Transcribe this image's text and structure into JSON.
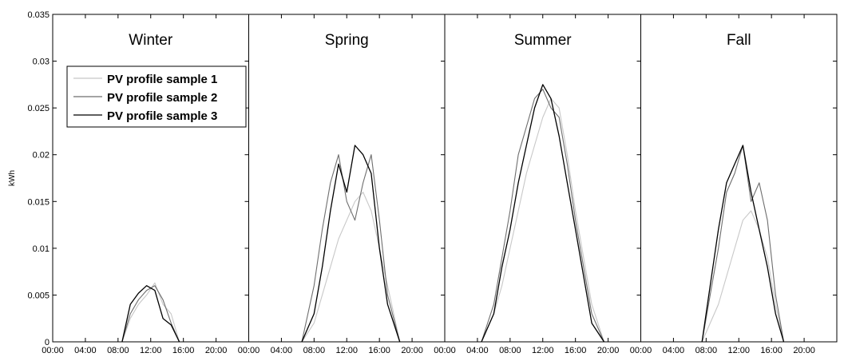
{
  "chart_data": {
    "type": "line",
    "ylabel": "kWh",
    "ylim": [
      0,
      0.035
    ],
    "yticks": [
      0,
      0.005,
      0.01,
      0.015,
      0.02,
      0.025,
      0.03,
      0.035
    ],
    "ytick_labels": [
      "0",
      "0.005",
      "0.01",
      "0.015",
      "0.02",
      "0.025",
      "0.03",
      "0.035"
    ],
    "xlim_hours": [
      0,
      24
    ],
    "xticks_hours": [
      0,
      4,
      8,
      12,
      16,
      20
    ],
    "xtick_labels": [
      "00:00",
      "04:00",
      "08:00",
      "12:00",
      "16:00",
      "20:00"
    ],
    "grid": false,
    "legend_position": "top-left (Winter panel)",
    "legend": [
      "PV profile sample 1",
      "PV profile sample 2",
      "PV profile sample 3"
    ],
    "series_colors": [
      "#c8c8c8",
      "#6e6e6e",
      "#000000"
    ],
    "panels": [
      {
        "title": "Winter",
        "series": [
          {
            "name": "PV profile sample 1",
            "hours": [
              8.5,
              9.5,
              10.5,
              11.5,
              12.5,
              13.5,
              14.5,
              15.5
            ],
            "values": [
              0.0,
              0.0025,
              0.004,
              0.005,
              0.0063,
              0.004,
              0.003,
              0.0
            ]
          },
          {
            "name": "PV profile sample 2",
            "hours": [
              8.5,
              9.5,
              10.5,
              11.5,
              12.5,
              13.5,
              14.5,
              15.5
            ],
            "values": [
              0.0,
              0.003,
              0.0045,
              0.0055,
              0.006,
              0.0045,
              0.002,
              0.0
            ]
          },
          {
            "name": "PV profile sample 3",
            "hours": [
              8.5,
              9.5,
              10.5,
              11.5,
              12.5,
              13.5,
              14.5,
              15.5
            ],
            "values": [
              0.0,
              0.004,
              0.0052,
              0.006,
              0.0055,
              0.0025,
              0.0018,
              0.0
            ]
          }
        ]
      },
      {
        "title": "Spring",
        "series": [
          {
            "name": "PV profile sample 1",
            "hours": [
              6.5,
              8,
              9,
              10,
              11,
              12,
              13,
              14,
              15,
              16,
              17,
              18.5
            ],
            "values": [
              0.0,
              0.002,
              0.005,
              0.008,
              0.011,
              0.013,
              0.015,
              0.016,
              0.014,
              0.01,
              0.006,
              0.0
            ]
          },
          {
            "name": "PV profile sample 2",
            "hours": [
              6.5,
              8,
              9,
              10,
              11,
              12,
              13,
              14,
              15,
              16,
              17,
              18.5
            ],
            "values": [
              0.0,
              0.006,
              0.012,
              0.017,
              0.02,
              0.015,
              0.013,
              0.017,
              0.02,
              0.013,
              0.005,
              0.0
            ]
          },
          {
            "name": "PV profile sample 3",
            "hours": [
              6.5,
              8,
              9,
              10,
              11,
              12,
              13,
              14,
              15,
              16,
              17,
              18.5
            ],
            "values": [
              0.0,
              0.003,
              0.008,
              0.014,
              0.019,
              0.016,
              0.021,
              0.02,
              0.018,
              0.01,
              0.004,
              0.0
            ]
          }
        ]
      },
      {
        "title": "Summer",
        "series": [
          {
            "name": "PV profile sample 1",
            "hours": [
              4.5,
              6,
              7,
              8,
              9,
              10,
              11,
              12,
              13,
              14,
              15,
              16,
              17,
              18,
              19.5
            ],
            "values": [
              0.0,
              0.003,
              0.006,
              0.01,
              0.014,
              0.018,
              0.021,
              0.024,
              0.026,
              0.025,
              0.02,
              0.014,
              0.009,
              0.004,
              0.0
            ]
          },
          {
            "name": "PV profile sample 2",
            "hours": [
              4.5,
              6,
              7,
              8,
              9,
              10,
              11,
              12,
              13,
              14,
              15,
              16,
              17,
              18,
              19.5
            ],
            "values": [
              0.0,
              0.004,
              0.009,
              0.014,
              0.02,
              0.023,
              0.026,
              0.027,
              0.025,
              0.024,
              0.019,
              0.013,
              0.008,
              0.003,
              0.0
            ]
          },
          {
            "name": "PV profile sample 3",
            "hours": [
              4.5,
              6,
              7,
              8,
              9,
              10,
              11,
              12,
              13,
              14,
              15,
              16,
              17,
              18,
              19.5
            ],
            "values": [
              0.0,
              0.003,
              0.008,
              0.012,
              0.017,
              0.021,
              0.025,
              0.0275,
              0.026,
              0.022,
              0.017,
              0.012,
              0.007,
              0.002,
              0.0
            ]
          }
        ]
      },
      {
        "title": "Fall",
        "series": [
          {
            "name": "PV profile sample 1",
            "hours": [
              7.5,
              8.5,
              9.5,
              10.5,
              11.5,
              12.5,
              13.5,
              14.5,
              15.5,
              16.5,
              17.5
            ],
            "values": [
              0.0,
              0.002,
              0.004,
              0.007,
              0.01,
              0.013,
              0.014,
              0.012,
              0.009,
              0.004,
              0.0
            ]
          },
          {
            "name": "PV profile sample 2",
            "hours": [
              7.5,
              8.5,
              9.5,
              10.5,
              11.5,
              12.5,
              13.5,
              14.5,
              15.5,
              16.5,
              17.5
            ],
            "values": [
              0.0,
              0.005,
              0.01,
              0.016,
              0.018,
              0.021,
              0.015,
              0.017,
              0.013,
              0.005,
              0.0
            ]
          },
          {
            "name": "PV profile sample 3",
            "hours": [
              7.5,
              8.5,
              9.5,
              10.5,
              11.5,
              12.5,
              13.5,
              14.5,
              15.5,
              16.5,
              17.5
            ],
            "values": [
              0.0,
              0.006,
              0.012,
              0.017,
              0.019,
              0.021,
              0.016,
              0.012,
              0.008,
              0.003,
              0.0
            ]
          }
        ]
      }
    ]
  }
}
